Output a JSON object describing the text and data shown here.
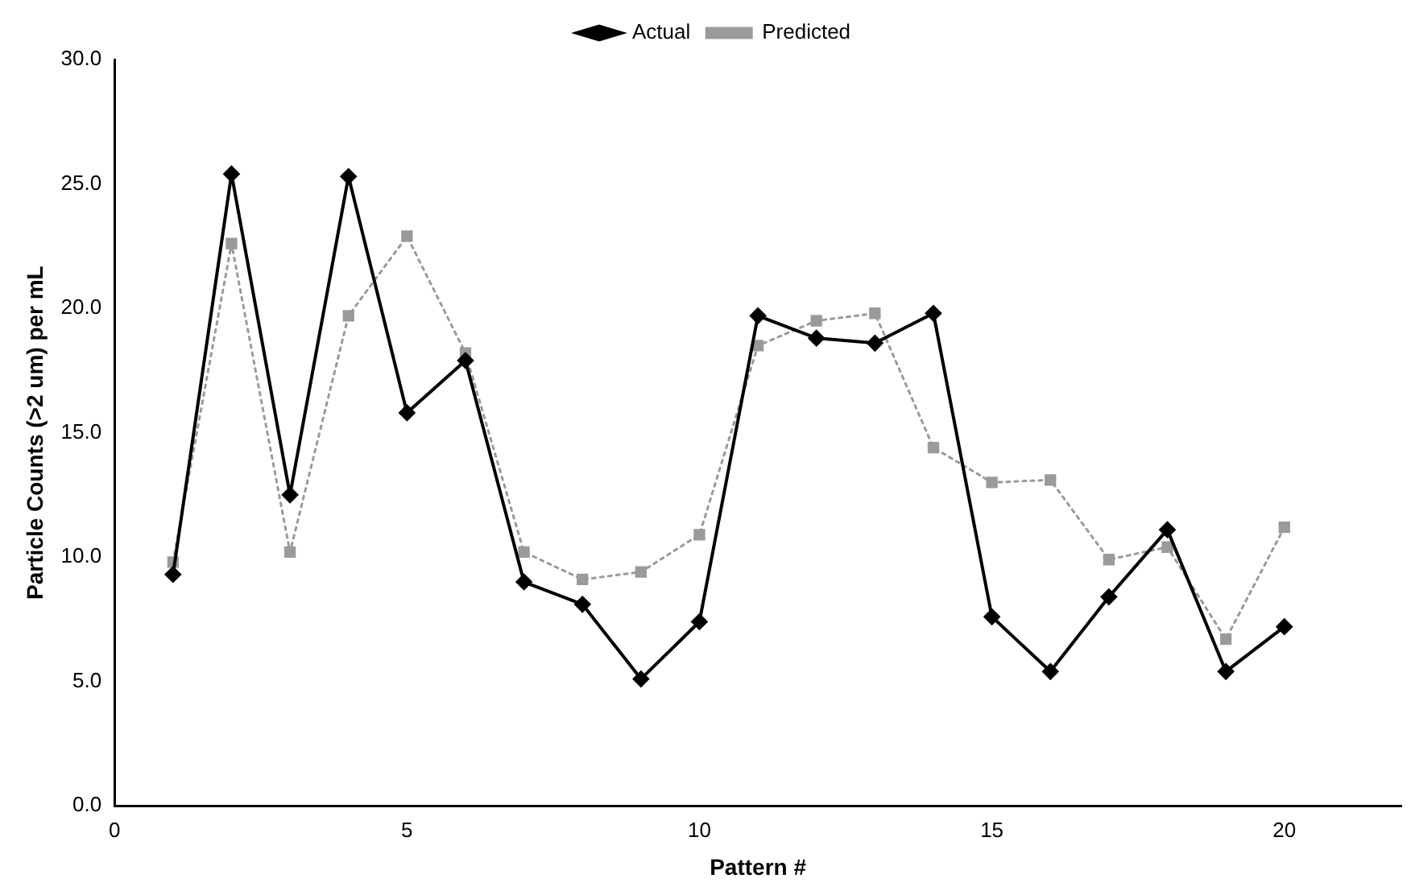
{
  "chart_data": {
    "type": "line",
    "xlabel": "Pattern #",
    "ylabel": "Particle Counts (>2 um) per mL",
    "x": [
      1,
      2,
      3,
      4,
      5,
      6,
      7,
      8,
      9,
      10,
      11,
      12,
      13,
      14,
      15,
      16,
      17,
      18,
      19,
      20
    ],
    "series": [
      {
        "name": "Actual",
        "color": "#000000",
        "marker": "diamond",
        "line_style": "solid",
        "values": [
          9.3,
          25.4,
          12.5,
          25.3,
          15.8,
          17.9,
          9.0,
          8.1,
          5.1,
          7.4,
          19.7,
          18.8,
          18.6,
          19.8,
          7.6,
          5.4,
          8.4,
          11.1,
          5.4,
          7.2
        ]
      },
      {
        "name": "Predicted",
        "color": "#9a9a9a",
        "marker": "square",
        "line_style": "dotted",
        "values": [
          9.8,
          22.6,
          10.2,
          19.7,
          22.9,
          18.2,
          10.2,
          9.1,
          9.4,
          10.9,
          18.5,
          19.5,
          19.8,
          14.4,
          13.0,
          13.1,
          9.9,
          10.4,
          6.7,
          11.2
        ]
      }
    ],
    "xlim": [
      0,
      22
    ],
    "xticks": [
      0,
      5,
      10,
      15,
      20
    ],
    "ylim": [
      0,
      30
    ],
    "yticks": [
      {
        "value": 0,
        "label": "0.0"
      },
      {
        "value": 5,
        "label": "5.0"
      },
      {
        "value": 10,
        "label": "10.0"
      },
      {
        "value": 15,
        "label": "15.0"
      },
      {
        "value": 20,
        "label": "20.0"
      },
      {
        "value": 25,
        "label": "25.0"
      },
      {
        "value": 30,
        "label": "30.0"
      }
    ],
    "grid": false,
    "legend": "top"
  }
}
